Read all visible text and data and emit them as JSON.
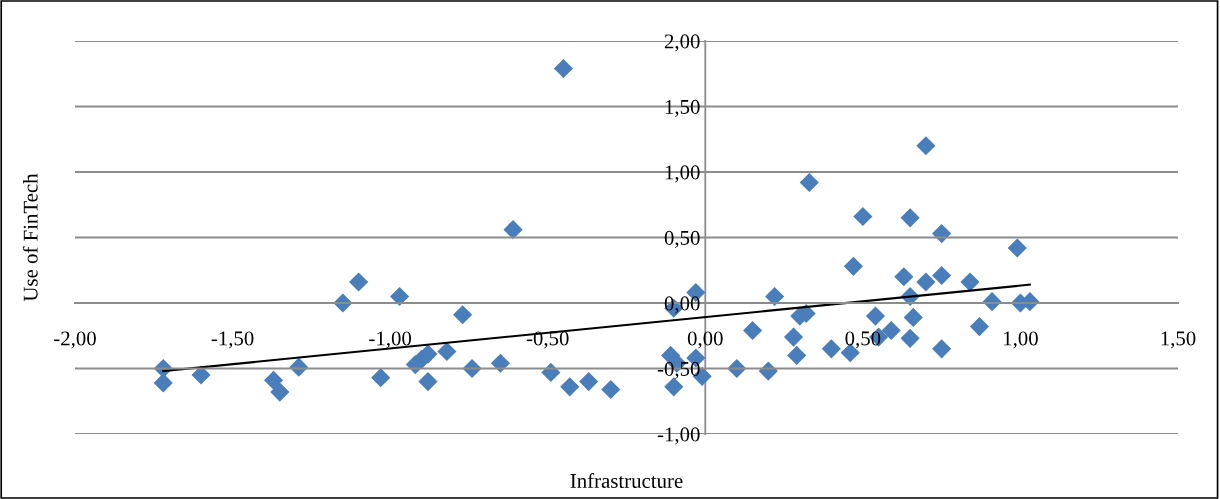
{
  "chart_data": {
    "type": "scatter",
    "xlabel": "Infrastructure",
    "ylabel": "Use of FinTech",
    "xlim": [
      -2.0,
      1.5
    ],
    "ylim": [
      -1.0,
      2.0
    ],
    "xticks": [
      {
        "value": -2.0,
        "label": "-2,00"
      },
      {
        "value": -1.5,
        "label": "-1,50"
      },
      {
        "value": -1.0,
        "label": "-1,00"
      },
      {
        "value": -0.5,
        "label": "-0,50"
      },
      {
        "value": 0.0,
        "label": "0,00"
      },
      {
        "value": 0.5,
        "label": "0,50"
      },
      {
        "value": 1.0,
        "label": "1,00"
      },
      {
        "value": 1.5,
        "label": "1,50"
      }
    ],
    "yticks": [
      {
        "value": -1.0,
        "label": "-1,00"
      },
      {
        "value": -0.5,
        "label": "-0,50"
      },
      {
        "value": 0.0,
        "label": "0,00"
      },
      {
        "value": 0.5,
        "label": "0,50"
      },
      {
        "value": 1.0,
        "label": "1,00"
      },
      {
        "value": 1.5,
        "label": "1,50"
      },
      {
        "value": 2.0,
        "label": "2,00"
      }
    ],
    "grid": "y",
    "marker": "diamond",
    "series": [
      {
        "color": "#4a7ebb",
        "x": [
          -1.72,
          -1.72,
          -1.6,
          -1.37,
          -1.35,
          -1.29,
          -1.15,
          -1.1,
          -1.03,
          -0.97,
          -0.92,
          -0.9,
          -0.88,
          -0.88,
          -0.82,
          -0.77,
          -0.74,
          -0.65,
          -0.61,
          -0.49,
          -0.45,
          -0.43,
          -0.37,
          -0.3,
          -0.11,
          -0.1,
          -0.09,
          -0.1,
          -0.03,
          -0.03,
          -0.01,
          0.1,
          0.15,
          0.2,
          0.22,
          0.28,
          0.29,
          0.3,
          0.32,
          0.33,
          0.4,
          0.46,
          0.47,
          0.5,
          0.54,
          0.55,
          0.59,
          0.63,
          0.65,
          0.65,
          0.66,
          0.65,
          0.7,
          0.7,
          0.75,
          0.75,
          0.75,
          0.84,
          0.87,
          0.91,
          0.99,
          1.0,
          1.03
        ],
        "values": [
          -0.5,
          -0.61,
          -0.55,
          -0.59,
          -0.68,
          -0.49,
          0.0,
          0.16,
          -0.57,
          0.05,
          -0.47,
          -0.43,
          -0.39,
          -0.6,
          -0.37,
          -0.09,
          -0.5,
          -0.46,
          0.56,
          -0.53,
          1.79,
          -0.64,
          -0.6,
          -0.66,
          -0.4,
          -0.04,
          -0.46,
          -0.64,
          0.08,
          -0.42,
          -0.56,
          -0.5,
          -0.21,
          -0.52,
          0.05,
          -0.26,
          -0.4,
          -0.1,
          -0.08,
          0.92,
          -0.35,
          -0.38,
          0.28,
          0.66,
          -0.1,
          -0.26,
          -0.21,
          0.2,
          0.05,
          0.65,
          -0.11,
          -0.27,
          1.2,
          0.16,
          0.53,
          0.21,
          -0.35,
          0.16,
          -0.18,
          0.01,
          0.42,
          0.0,
          0.01
        ]
      },
      {
        "type": "line",
        "color": "#000000",
        "x": [
          -1.72,
          1.03
        ],
        "values": [
          -0.52,
          0.14
        ],
        "marker": "none",
        "line_style": "solid"
      }
    ]
  }
}
